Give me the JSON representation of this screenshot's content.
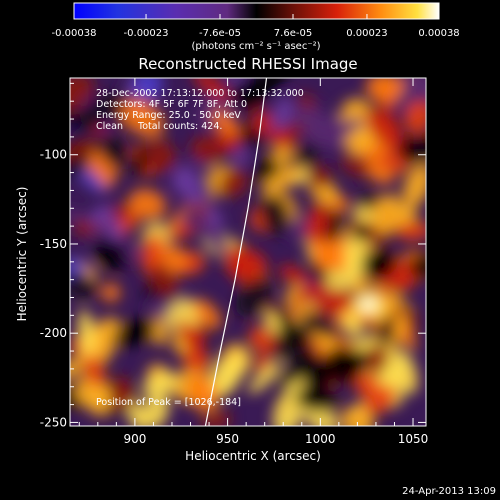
{
  "chart_data": {
    "type": "heatmap",
    "title": "Reconstructed RHESSI Image",
    "xlabel": "Heliocentric X (arcsec)",
    "ylabel": "Heliocentric Y (arcsec)",
    "xlim": [
      865,
      1057
    ],
    "ylim": [
      -252,
      -57
    ],
    "x_ticks": [
      900,
      950,
      1000,
      1050
    ],
    "y_ticks": [
      -100,
      -150,
      -200,
      -250
    ],
    "colorbar": {
      "ticks": [
        "-0.00038",
        "-0.00023",
        "-7.6e-05",
        "7.6e-05",
        "0.00023",
        "0.00038"
      ],
      "tick_values": [
        -0.00038,
        -0.00023,
        -7.6e-05,
        7.6e-05,
        0.00023,
        0.00038
      ],
      "range": [
        -0.00038,
        0.00038
      ],
      "unit_label": "(photons cm⁻² s⁻¹ asec⁻²)"
    },
    "annotations": {
      "time_range": "28-Dec-2002 17:13:12.000 to 17:13:32.000",
      "detectors": "Detectors: 4F 5F 6F 7F 8F, Att 0",
      "energy_range": "Energy Range: 25.0 - 50.0 keV",
      "clean_counts": "Clean     Total counts: 424.",
      "peak_position": "Position of Peak = [1026,-184]"
    },
    "peak": {
      "x": 1026,
      "y": -184
    },
    "limb_curve": [
      [
        971,
        -57
      ],
      [
        967,
        -90
      ],
      [
        961,
        -130
      ],
      [
        954,
        -170
      ],
      [
        946,
        -210
      ],
      [
        938,
        -252
      ]
    ]
  },
  "footer": {
    "date": "24-Apr-2013 13:09"
  }
}
